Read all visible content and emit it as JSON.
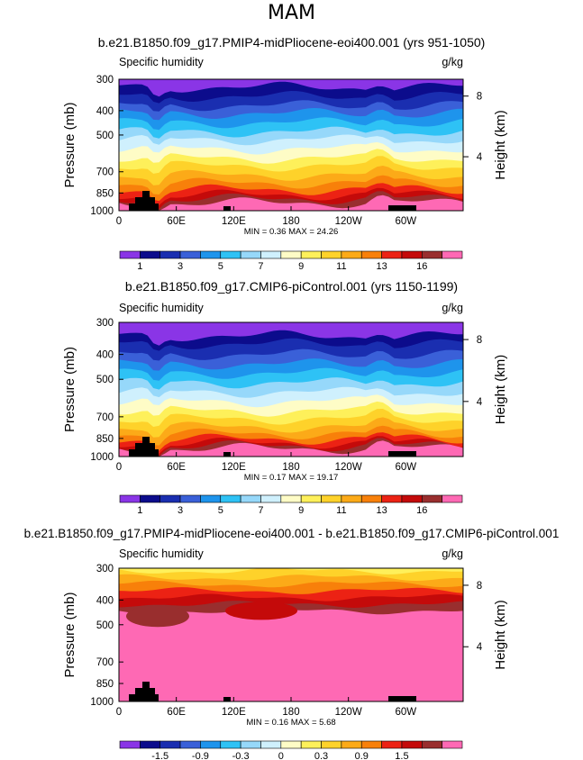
{
  "page": {
    "title": "MAM"
  },
  "colors": {
    "abs": [
      "#8a35e6",
      "#0c0c8c",
      "#1a2eb0",
      "#3a60d8",
      "#1e94ec",
      "#2ec2f5",
      "#96d8fa",
      "#cff0fd",
      "#fefcc6",
      "#fef05a",
      "#fed22a",
      "#fcaa18",
      "#f8800a",
      "#ec2214",
      "#c40a0a",
      "#992e2e",
      "#fe69b4"
    ],
    "diff": [
      "#8a35e6",
      "#0c0c8c",
      "#1a2eb0",
      "#3a60d8",
      "#1e94ec",
      "#2ec2f5",
      "#96d8fa",
      "#cff0fd",
      "#fefcc6",
      "#fef05a",
      "#fed22a",
      "#fcaa18",
      "#f8800a",
      "#ec2214",
      "#c40a0a",
      "#992e2e",
      "#fe69b4"
    ]
  },
  "chart_data": [
    {
      "type": "heatmap",
      "title": "b.e21.B1850.f09_g17.PMIP4-midPliocene-eoi400.001 (yrs 951-1050)",
      "variable": "Specific humidity",
      "units": "g/kg",
      "ylabel": "Pressure  (mb)",
      "ylabel_right": "Height  (km)",
      "y_ticks": [
        300,
        400,
        500,
        700,
        850,
        1000
      ],
      "y_right_ticks": [
        8,
        4
      ],
      "x_ticks": [
        "0",
        "60E",
        "120E",
        "180",
        "120W",
        "60W"
      ],
      "x_tick_values": [
        0,
        60,
        120,
        180,
        240,
        300
      ],
      "xlim": [
        0,
        360
      ],
      "ylim": [
        1000,
        300
      ],
      "stats": "MIN =     0.36   MAX =   24.26",
      "colorbar_labels": [
        "1",
        "3",
        "5",
        "7",
        "9",
        "11",
        "13",
        "16"
      ],
      "palette": "abs",
      "variant": "pliocene"
    },
    {
      "type": "heatmap",
      "title": "b.e21.B1850.f09_g17.CMIP6-piControl.001 (yrs 1150-1199)",
      "variable": "Specific humidity",
      "units": "g/kg",
      "ylabel": "Pressure  (mb)",
      "ylabel_right": "Height  (km)",
      "y_ticks": [
        300,
        400,
        500,
        700,
        850,
        1000
      ],
      "y_right_ticks": [
        8,
        4
      ],
      "x_ticks": [
        "0",
        "60E",
        "120E",
        "180",
        "120W",
        "60W"
      ],
      "x_tick_values": [
        0,
        60,
        120,
        180,
        240,
        300
      ],
      "xlim": [
        0,
        360
      ],
      "ylim": [
        1000,
        300
      ],
      "stats": "MIN =     0.17   MAX =   19.17",
      "colorbar_labels": [
        "1",
        "3",
        "5",
        "7",
        "9",
        "11",
        "13",
        "16"
      ],
      "palette": "abs",
      "variant": "control"
    },
    {
      "type": "heatmap",
      "title": "b.e21.B1850.f09_g17.PMIP4-midPliocene-eoi400.001 - b.e21.B1850.f09_g17.CMIP6-piControl.001",
      "variable": "Specific humidity",
      "units": "g/kg",
      "ylabel": "Pressure  (mb)",
      "ylabel_right": "Height  (km)",
      "y_ticks": [
        300,
        400,
        500,
        700,
        850,
        1000
      ],
      "y_right_ticks": [
        8,
        4
      ],
      "x_ticks": [
        "0",
        "60E",
        "120E",
        "180",
        "120W",
        "60W"
      ],
      "x_tick_values": [
        0,
        60,
        120,
        180,
        240,
        300
      ],
      "xlim": [
        0,
        360
      ],
      "ylim": [
        1000,
        300
      ],
      "stats": "MIN =     0.16   MAX =   5.68",
      "colorbar_labels": [
        "-1.5",
        "-0.9",
        "-0.3",
        "0",
        "0.3",
        "0.9",
        "1.5"
      ],
      "palette": "diff",
      "variant": "diff"
    }
  ]
}
